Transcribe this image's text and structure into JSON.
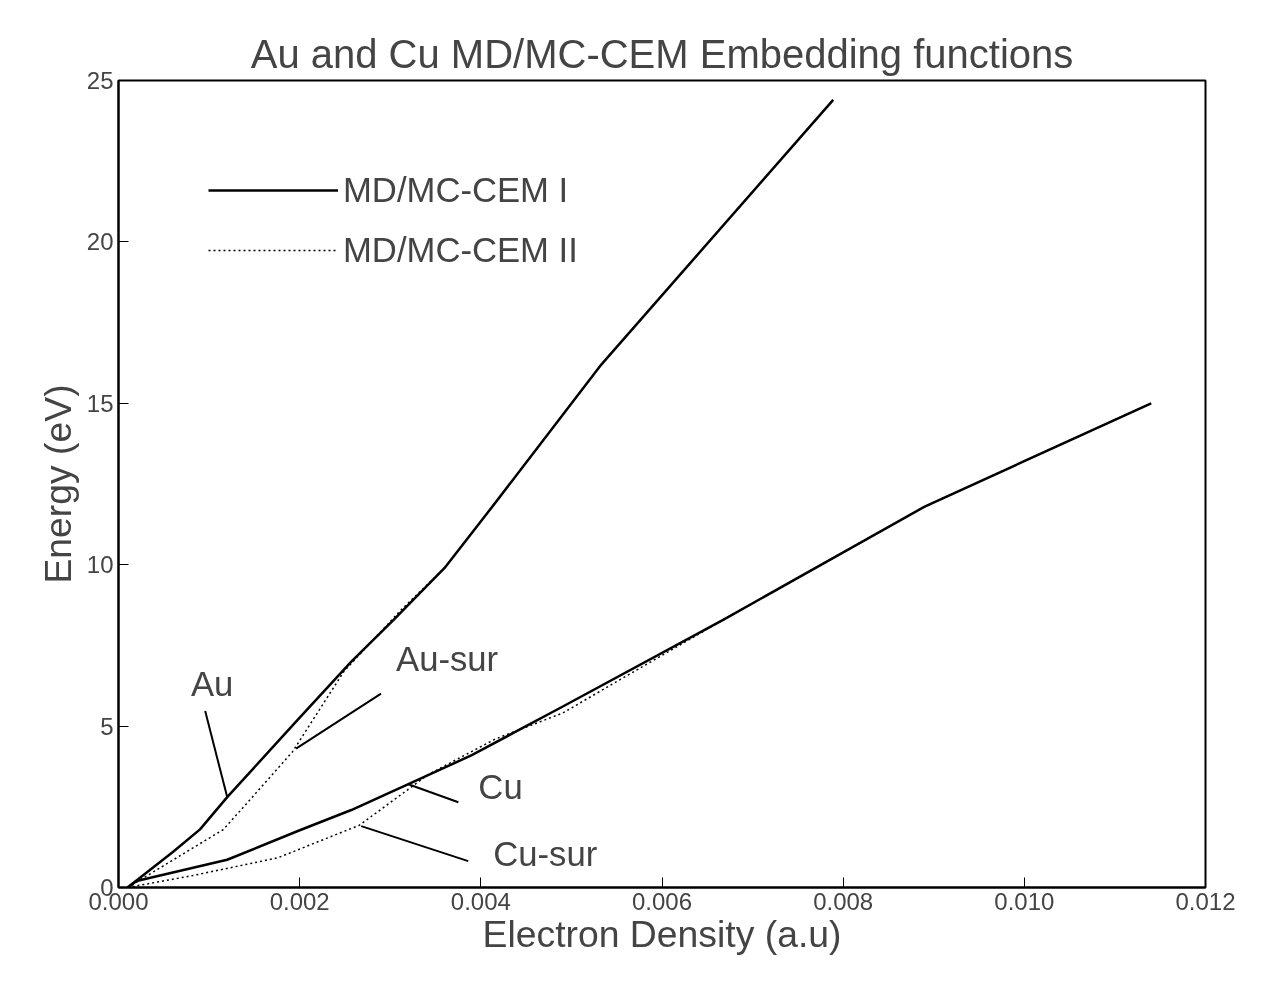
{
  "chart_data": {
    "type": "line",
    "title": "Au and Cu MD/MC-CEM Embedding functions",
    "xlabel": "Electron Density (a.u)",
    "ylabel": "Energy (eV)",
    "series": [
      {
        "name": "MD/MC-CEM I",
        "color": "#000000",
        "line_style": "solid",
        "x": [
          0.0001,
          0.0006,
          0.0009,
          0.0012,
          0.00198,
          0.00257,
          0.00304,
          0.0036,
          0.0041,
          0.00533,
          0.00789
        ],
        "values": [
          0,
          1.1,
          1.8,
          2.8,
          5.2,
          7.0,
          8.3,
          9.9,
          11.7,
          16.2,
          24.4
        ]
      },
      {
        "name": "MD/MC-CEM II",
        "color": "#000000",
        "line_style": "dotted",
        "x": [
          0.0001,
          0.00116,
          0.00192,
          0.00249,
          0.00312,
          0.0036,
          0.0041,
          0.00533,
          0.00789
        ],
        "values": [
          0,
          1.8,
          4.2,
          6.7,
          8.6,
          9.9,
          11.7,
          16.2,
          24.4
        ]
      },
      {
        "color": "#000000",
        "line_style": "solid",
        "x": [
          0.0001,
          0.0002,
          0.0012,
          0.00198,
          0.00257,
          0.0032,
          0.0039,
          0.0049,
          0.00668,
          0.0089,
          0.0114
        ],
        "values": [
          0,
          0.2,
          0.86,
          1.75,
          2.4,
          3.2,
          4.1,
          5.6,
          8.3,
          11.8,
          15.0
        ]
      },
      {
        "color": "#000000",
        "line_style": "dotted",
        "x": [
          0.0001,
          0.00082,
          0.00176,
          0.00266,
          0.00342,
          0.00416,
          0.0049,
          0.00668,
          0.0089,
          0.0114
        ],
        "values": [
          0,
          0.37,
          0.92,
          1.93,
          3.5,
          4.6,
          5.4,
          8.3,
          11.8,
          15.0
        ]
      }
    ],
    "xlim": [
      0,
      0.012
    ],
    "xticks": [
      {
        "value": 0,
        "label": "0.000"
      },
      {
        "value": 0.002,
        "label": "0.002"
      },
      {
        "value": 0.004,
        "label": "0.004"
      },
      {
        "value": 0.006,
        "label": "0.006"
      },
      {
        "value": 0.008,
        "label": "0.008"
      },
      {
        "value": 0.01,
        "label": "0.010"
      },
      {
        "value": 0.012,
        "label": "0.012"
      }
    ],
    "ylim": [
      0,
      25
    ],
    "yticks": [
      0,
      5,
      10,
      15,
      20,
      25
    ],
    "grid": false,
    "legend": "top left",
    "annotations": [
      {
        "text": "Au",
        "x": 0.0012,
        "y": 2.8
      },
      {
        "text": "Au-sur",
        "x": 0.00196,
        "y": 4.3
      },
      {
        "text": "Cu",
        "x": 0.0032,
        "y": 3.2
      },
      {
        "text": "Cu-sur",
        "x": 0.00268,
        "y": 1.9
      }
    ]
  }
}
